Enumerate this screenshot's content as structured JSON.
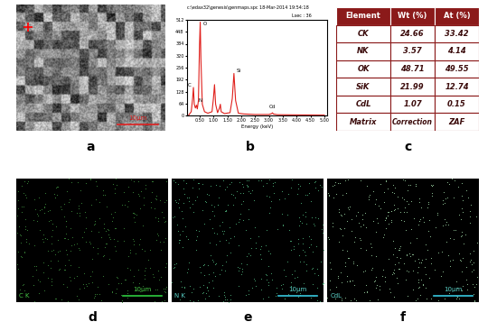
{
  "chart_data": {
    "type": "line",
    "header": "c:\\edax32\\genesis\\genmaps.spc 18-Mar-2014 19:54:18",
    "subheader": "Lsec : 36",
    "x_label": "Energy (keV)",
    "color": "#e0201c",
    "x": [
      0.1,
      0.2,
      0.25,
      0.28,
      0.31,
      0.35,
      0.39,
      0.42,
      0.46,
      0.5,
      0.525,
      0.55,
      0.6,
      0.68,
      0.8,
      0.95,
      1.0,
      1.04,
      1.08,
      1.15,
      1.22,
      1.25,
      1.28,
      1.4,
      1.6,
      1.68,
      1.74,
      1.8,
      1.9,
      2.1,
      2.5,
      3.0,
      3.1,
      3.13,
      3.16,
      3.3,
      4.0,
      5.0
    ],
    "values": [
      0,
      20,
      90,
      150,
      60,
      40,
      55,
      35,
      80,
      380,
      500,
      300,
      60,
      20,
      12,
      20,
      90,
      165,
      60,
      15,
      40,
      60,
      20,
      10,
      15,
      90,
      225,
      80,
      12,
      8,
      5,
      5,
      10,
      14,
      8,
      4,
      3,
      2
    ],
    "peak_labels": [
      {
        "text": "C",
        "x": 0.28,
        "y": 150
      },
      {
        "text": "N",
        "x": 0.39,
        "y": 55
      },
      {
        "text": "O",
        "x": 0.525,
        "y": 500
      },
      {
        "text": "Si",
        "x": 1.74,
        "y": 225
      },
      {
        "text": "Cd",
        "x": 3.13,
        "y": 14
      }
    ],
    "xlim": [
      0.05,
      5.1
    ],
    "xticks": [
      {
        "value": 0.5,
        "label": "0.50"
      },
      {
        "value": 1.0,
        "label": "1.00"
      },
      {
        "value": 1.5,
        "label": "1.50"
      },
      {
        "value": 2.0,
        "label": "2.00"
      },
      {
        "value": 2.5,
        "label": "2.50"
      },
      {
        "value": 3.0,
        "label": "3.00"
      },
      {
        "value": 3.5,
        "label": "3.50"
      },
      {
        "value": 4.0,
        "label": "4.00"
      },
      {
        "value": 4.5,
        "label": "4.50"
      },
      {
        "value": 5.0,
        "label": "5.00"
      }
    ],
    "ylim": [
      0,
      512
    ],
    "yticks": [
      0,
      64,
      128,
      192,
      256,
      320,
      384,
      448,
      512
    ],
    "grid": false
  },
  "panel_labels": [
    "a",
    "b",
    "c",
    "d",
    "e",
    "f"
  ],
  "sem_image": {
    "scale_bar": "10μm"
  },
  "table": {
    "header": [
      "Element",
      "Wt (%)",
      "At (%)"
    ],
    "rows": [
      [
        "CK",
        24.66,
        33.42
      ],
      [
        "NK",
        3.57,
        4.14
      ],
      [
        "OK",
        48.71,
        49.55
      ],
      [
        "SiK",
        21.99,
        12.74
      ],
      [
        "CdL",
        1.07,
        0.15
      ],
      [
        "Matrix",
        "Correction",
        "ZAF"
      ]
    ]
  },
  "maps": [
    {
      "label": "C K",
      "scale_bar": "10μm"
    },
    {
      "label": "N K",
      "scale_bar": "10μm"
    },
    {
      "label": "CdL",
      "scale_bar": "10μm"
    }
  ]
}
